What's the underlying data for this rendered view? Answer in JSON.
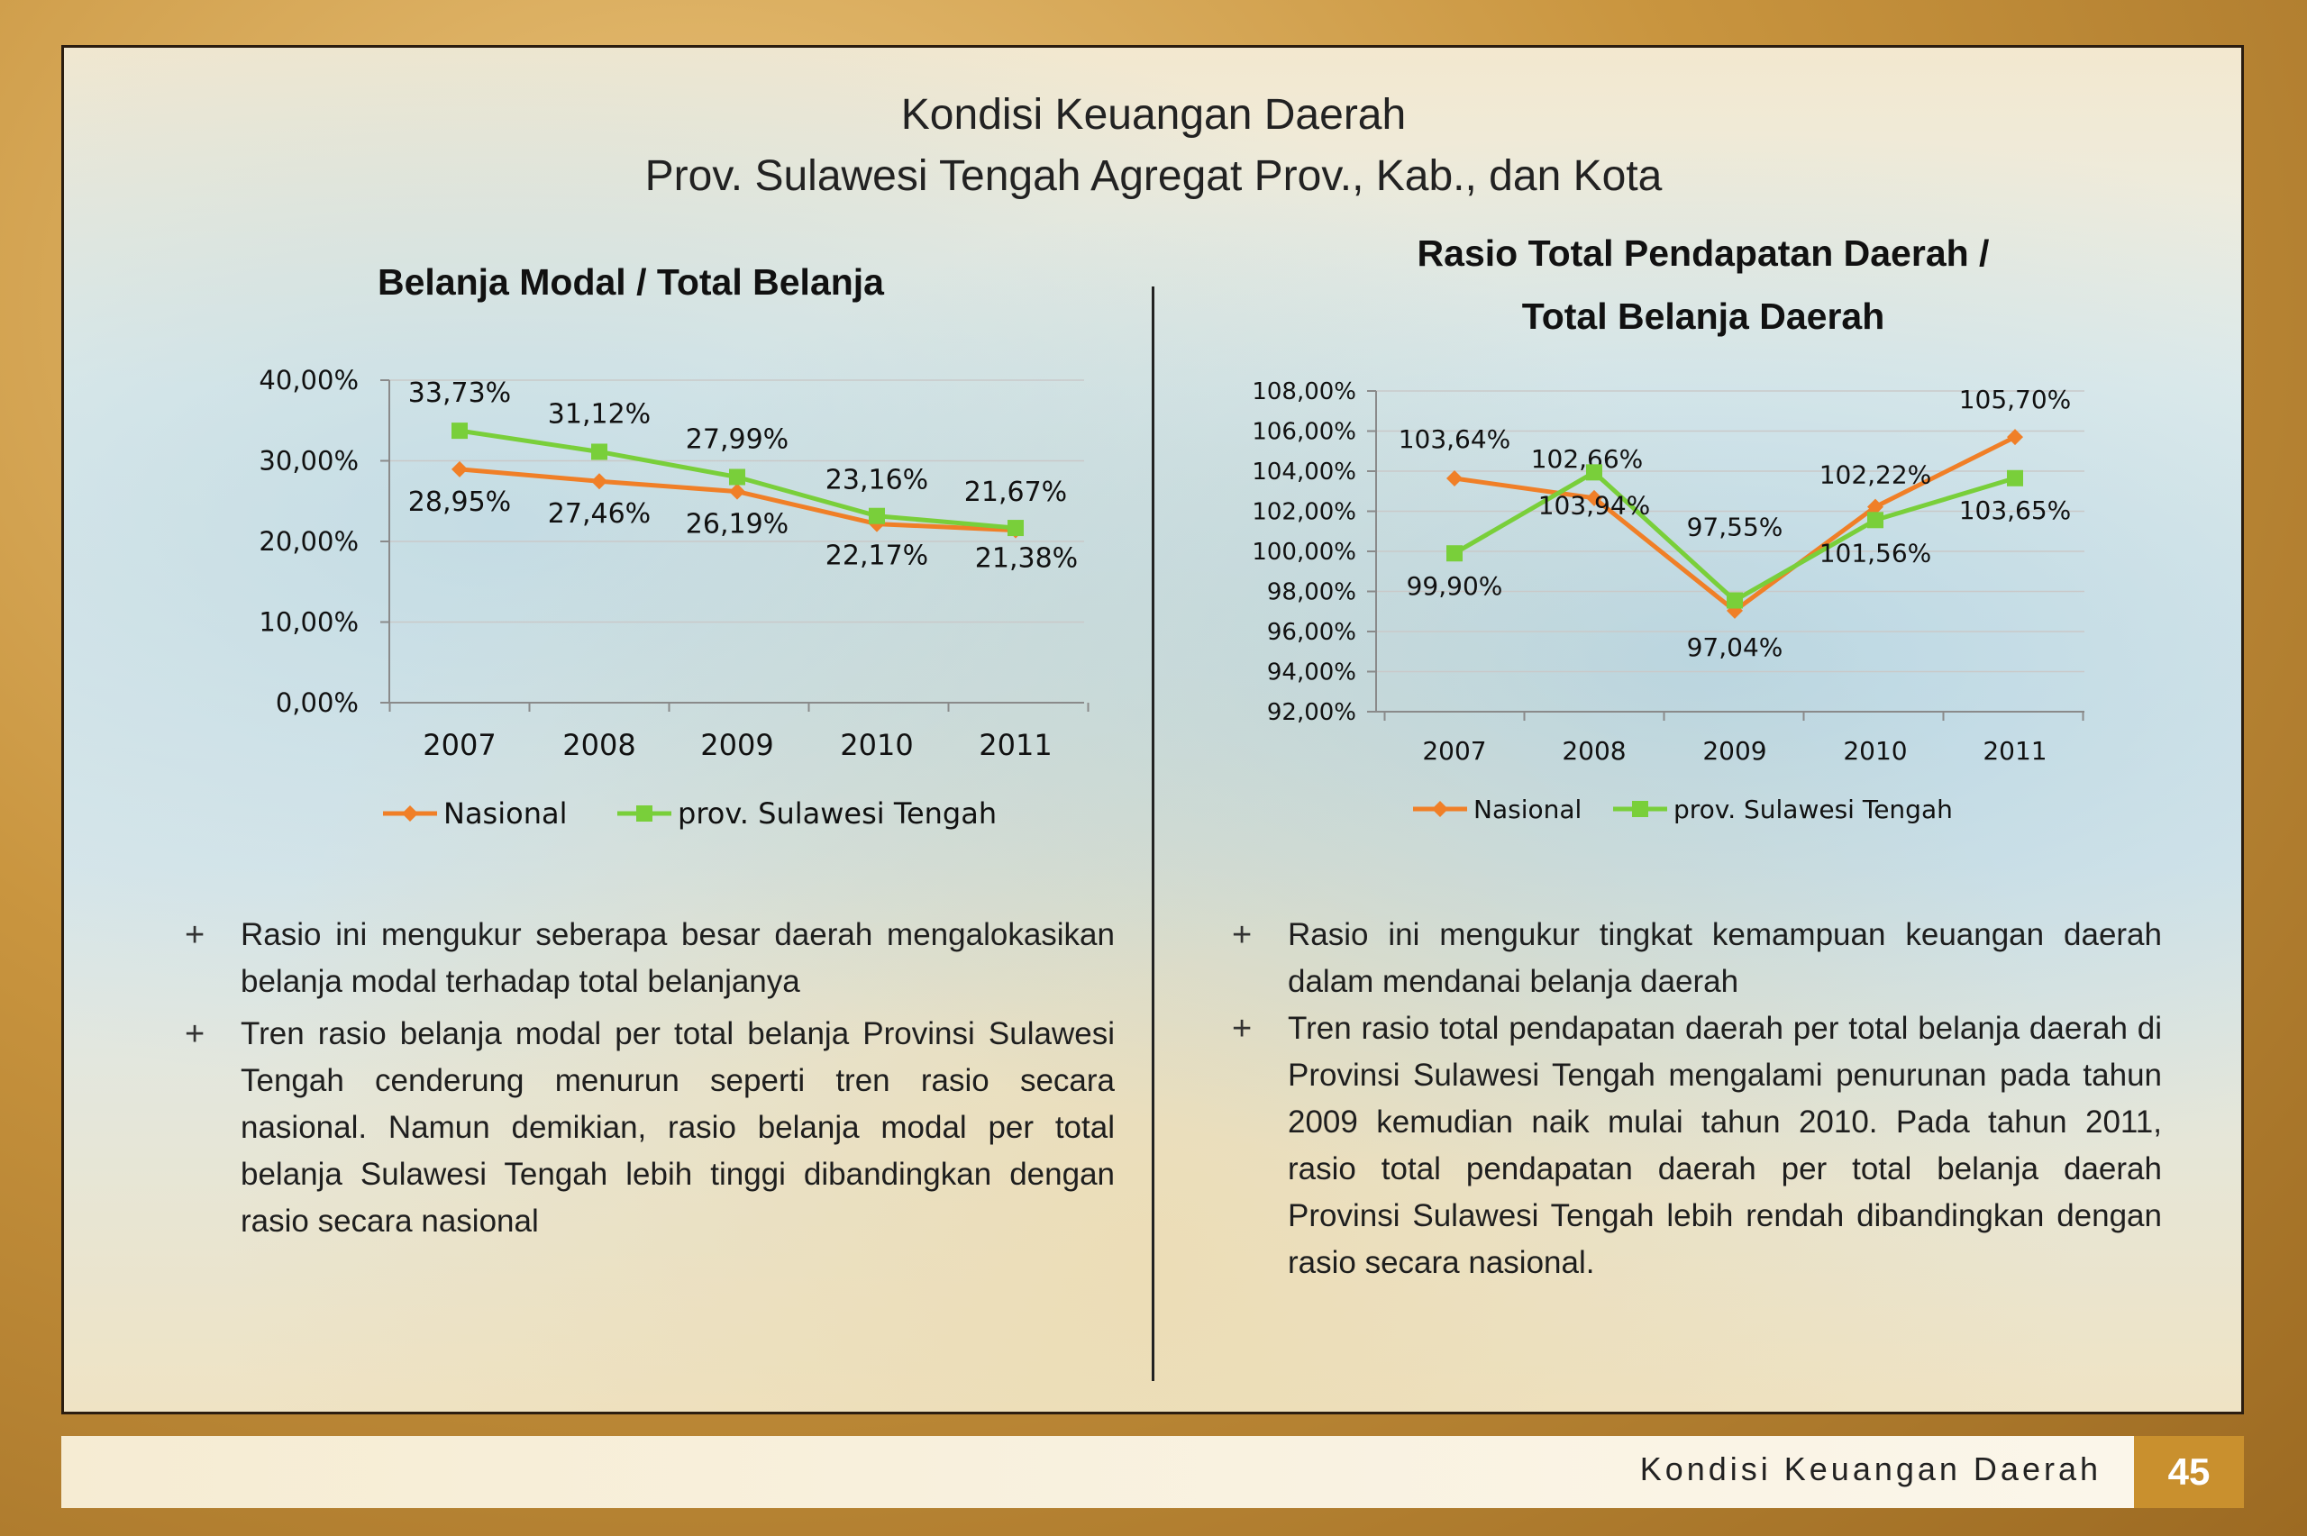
{
  "page": {
    "title_line1": "Kondisi Keuangan Daerah",
    "title_line2": "Prov. Sulawesi Tengah Agregat Prov., Kab., dan Kota",
    "footer_text": "Kondisi Keuangan Daerah",
    "page_number": "45"
  },
  "colors": {
    "nasional": "#f07f27",
    "sulteng": "#79cf3a",
    "frame": "#2b1d10",
    "accent": "#c9902e"
  },
  "chart_data": [
    {
      "type": "line",
      "title": "Belanja Modal / Total Belanja",
      "categories": [
        "2007",
        "2008",
        "2009",
        "2010",
        "2011"
      ],
      "ylim": [
        0,
        40
      ],
      "yticks": [
        "0,00%",
        "10,00%",
        "20,00%",
        "30,00%",
        "40,00%"
      ],
      "grid": true,
      "legend_position": "bottom",
      "series": [
        {
          "name": "Nasional",
          "values": [
            28.95,
            27.46,
            26.19,
            22.17,
            21.38
          ],
          "labels": [
            "28,95%",
            "27,46%",
            "26,19%",
            "22,17%",
            "21,38%"
          ]
        },
        {
          "name": "prov. Sulawesi Tengah",
          "values": [
            33.73,
            31.12,
            27.99,
            23.16,
            21.67
          ],
          "labels": [
            "33,73%",
            "31,12%",
            "27,99%",
            "23,16%",
            "21,67%"
          ]
        }
      ]
    },
    {
      "type": "line",
      "title_line1": "Rasio Total Pendapatan Daerah /",
      "title_line2": "Total Belanja Daerah",
      "categories": [
        "2007",
        "2008",
        "2009",
        "2010",
        "2011"
      ],
      "ylim": [
        92,
        108
      ],
      "yticks": [
        "92,00%",
        "94,00%",
        "96,00%",
        "98,00%",
        "100,00%",
        "102,00%",
        "104,00%",
        "106,00%",
        "108,00%"
      ],
      "grid": true,
      "legend_position": "bottom",
      "series": [
        {
          "name": "Nasional",
          "values": [
            103.64,
            102.66,
            97.04,
            102.22,
            105.7
          ],
          "labels": [
            "103,64%",
            "102,66%",
            "97,04%",
            "102,22%",
            "105,70%"
          ]
        },
        {
          "name": "prov. Sulawesi Tengah",
          "values": [
            99.9,
            103.94,
            97.55,
            101.56,
            103.65
          ],
          "labels": [
            "99,90%",
            "103,94%",
            "97,55%",
            "101,56%",
            "103,65%"
          ]
        }
      ]
    }
  ],
  "left_text": {
    "bullets": [
      "Rasio ini mengukur seberapa besar daerah mengalokasikan belanja modal terhadap total belanjanya",
      "Tren rasio belanja modal per total belanja Provinsi Sulawesi Tengah cenderung menurun seperti tren rasio secara nasional. Namun demikian, rasio belanja modal per total belanja Sulawesi Tengah lebih tinggi dibandingkan dengan rasio secara nasional"
    ]
  },
  "right_text": {
    "bullets": [
      "Rasio ini mengukur tingkat kemampuan keuangan daerah dalam mendanai belanja daerah",
      "Tren rasio total pendapatan daerah per total belanja daerah di Provinsi Sulawesi Tengah mengalami penurunan pada tahun 2009 kemudian naik mulai tahun 2010. Pada tahun 2011, rasio total pendapatan daerah per total belanja daerah Provinsi Sulawesi Tengah lebih rendah dibandingkan dengan rasio secara nasional."
    ]
  },
  "bullet_symbol": "+"
}
